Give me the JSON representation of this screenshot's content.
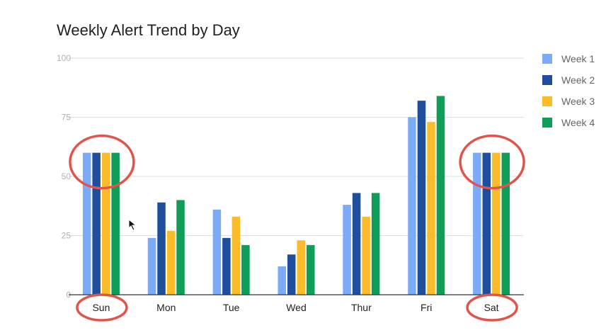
{
  "chart_data": {
    "type": "bar",
    "title": "Weekly Alert Trend by Day",
    "categories": [
      "Sun",
      "Mon",
      "Tue",
      "Wed",
      "Thur",
      "Fri",
      "Sat"
    ],
    "series": [
      {
        "name": "Week 1",
        "color": "#7baaf7",
        "values": [
          60,
          24,
          36,
          12,
          38,
          75,
          60
        ]
      },
      {
        "name": "Week 2",
        "color": "#1f4e9c",
        "values": [
          60,
          39,
          24,
          17,
          43,
          82,
          60
        ]
      },
      {
        "name": "Week 3",
        "color": "#fbbc2b",
        "values": [
          60,
          27,
          33,
          23,
          33,
          73,
          60
        ]
      },
      {
        "name": "Week 4",
        "color": "#0f9d58",
        "values": [
          60,
          40,
          21,
          21,
          43,
          84,
          60
        ]
      }
    ],
    "ylim": [
      0,
      100
    ],
    "yticks": [
      0,
      25,
      50,
      75,
      100
    ],
    "grid": true,
    "legend_position": "right",
    "highlighted_categories": [
      "Sun",
      "Sat"
    ],
    "highlight_color": "#e2544a"
  }
}
